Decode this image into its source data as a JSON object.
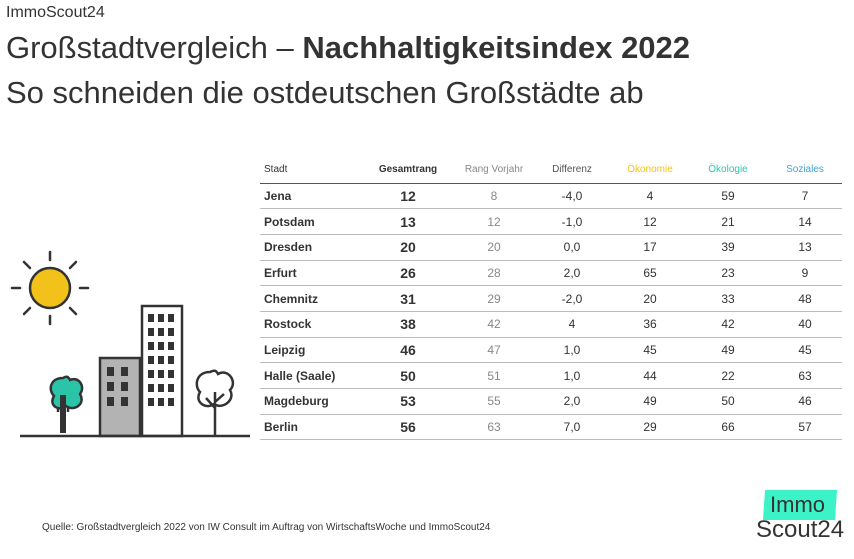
{
  "brand_top": "ImmoScout24",
  "title_regular": "Großstadtvergleich – ",
  "title_bold": "Nachhaltigkeitsindex 2022",
  "subtitle": "So schneiden die ostdeutschen Großstädte ab",
  "colors": {
    "oekonomie": "#f2c21b",
    "oekologie": "#2cc4a9",
    "soziales": "#3fa1d8",
    "logo_accent": "#3cf2c7",
    "sun": "#f2c21b",
    "tree": "#2cc4a9"
  },
  "chart_data": {
    "type": "table",
    "columns": [
      "Stadt",
      "Gesamtrang",
      "Rang Vorjahr",
      "Differenz",
      "Ökonomie",
      "Ökologie",
      "Soziales"
    ],
    "rows": [
      {
        "city": "Jena",
        "total": "12",
        "prev": "8",
        "diff": "-4,0",
        "oek": "4",
        "eko": "59",
        "soz": "7"
      },
      {
        "city": "Potsdam",
        "total": "13",
        "prev": "12",
        "diff": "-1,0",
        "oek": "12",
        "eko": "21",
        "soz": "14"
      },
      {
        "city": "Dresden",
        "total": "20",
        "prev": "20",
        "diff": "0,0",
        "oek": "17",
        "eko": "39",
        "soz": "13"
      },
      {
        "city": "Erfurt",
        "total": "26",
        "prev": "28",
        "diff": "2,0",
        "oek": "65",
        "eko": "23",
        "soz": "9"
      },
      {
        "city": "Chemnitz",
        "total": "31",
        "prev": "29",
        "diff": "-2,0",
        "oek": "20",
        "eko": "33",
        "soz": "48"
      },
      {
        "city": "Rostock",
        "total": "38",
        "prev": "42",
        "diff": "4",
        "oek": "36",
        "eko": "42",
        "soz": "40"
      },
      {
        "city": "Leipzig",
        "total": "46",
        "prev": "47",
        "diff": "1,0",
        "oek": "45",
        "eko": "49",
        "soz": "45"
      },
      {
        "city": "Halle (Saale)",
        "total": "50",
        "prev": "51",
        "diff": "1,0",
        "oek": "44",
        "eko": "22",
        "soz": "63"
      },
      {
        "city": "Magdeburg",
        "total": "53",
        "prev": "55",
        "diff": "2,0",
        "oek": "49",
        "eko": "50",
        "soz": "46"
      },
      {
        "city": "Berlin",
        "total": "56",
        "prev": "63",
        "diff": "7,0",
        "oek": "29",
        "eko": "66",
        "soz": "57"
      }
    ]
  },
  "source": "Quelle: Großstadtvergleich 2022 von IW Consult im Auftrag von WirtschaftsWoche und ImmoScout24",
  "logo": {
    "top": "Immo",
    "bottom": "Scout24"
  },
  "icons": [
    "sun-icon",
    "tree-icon",
    "building-icon"
  ]
}
